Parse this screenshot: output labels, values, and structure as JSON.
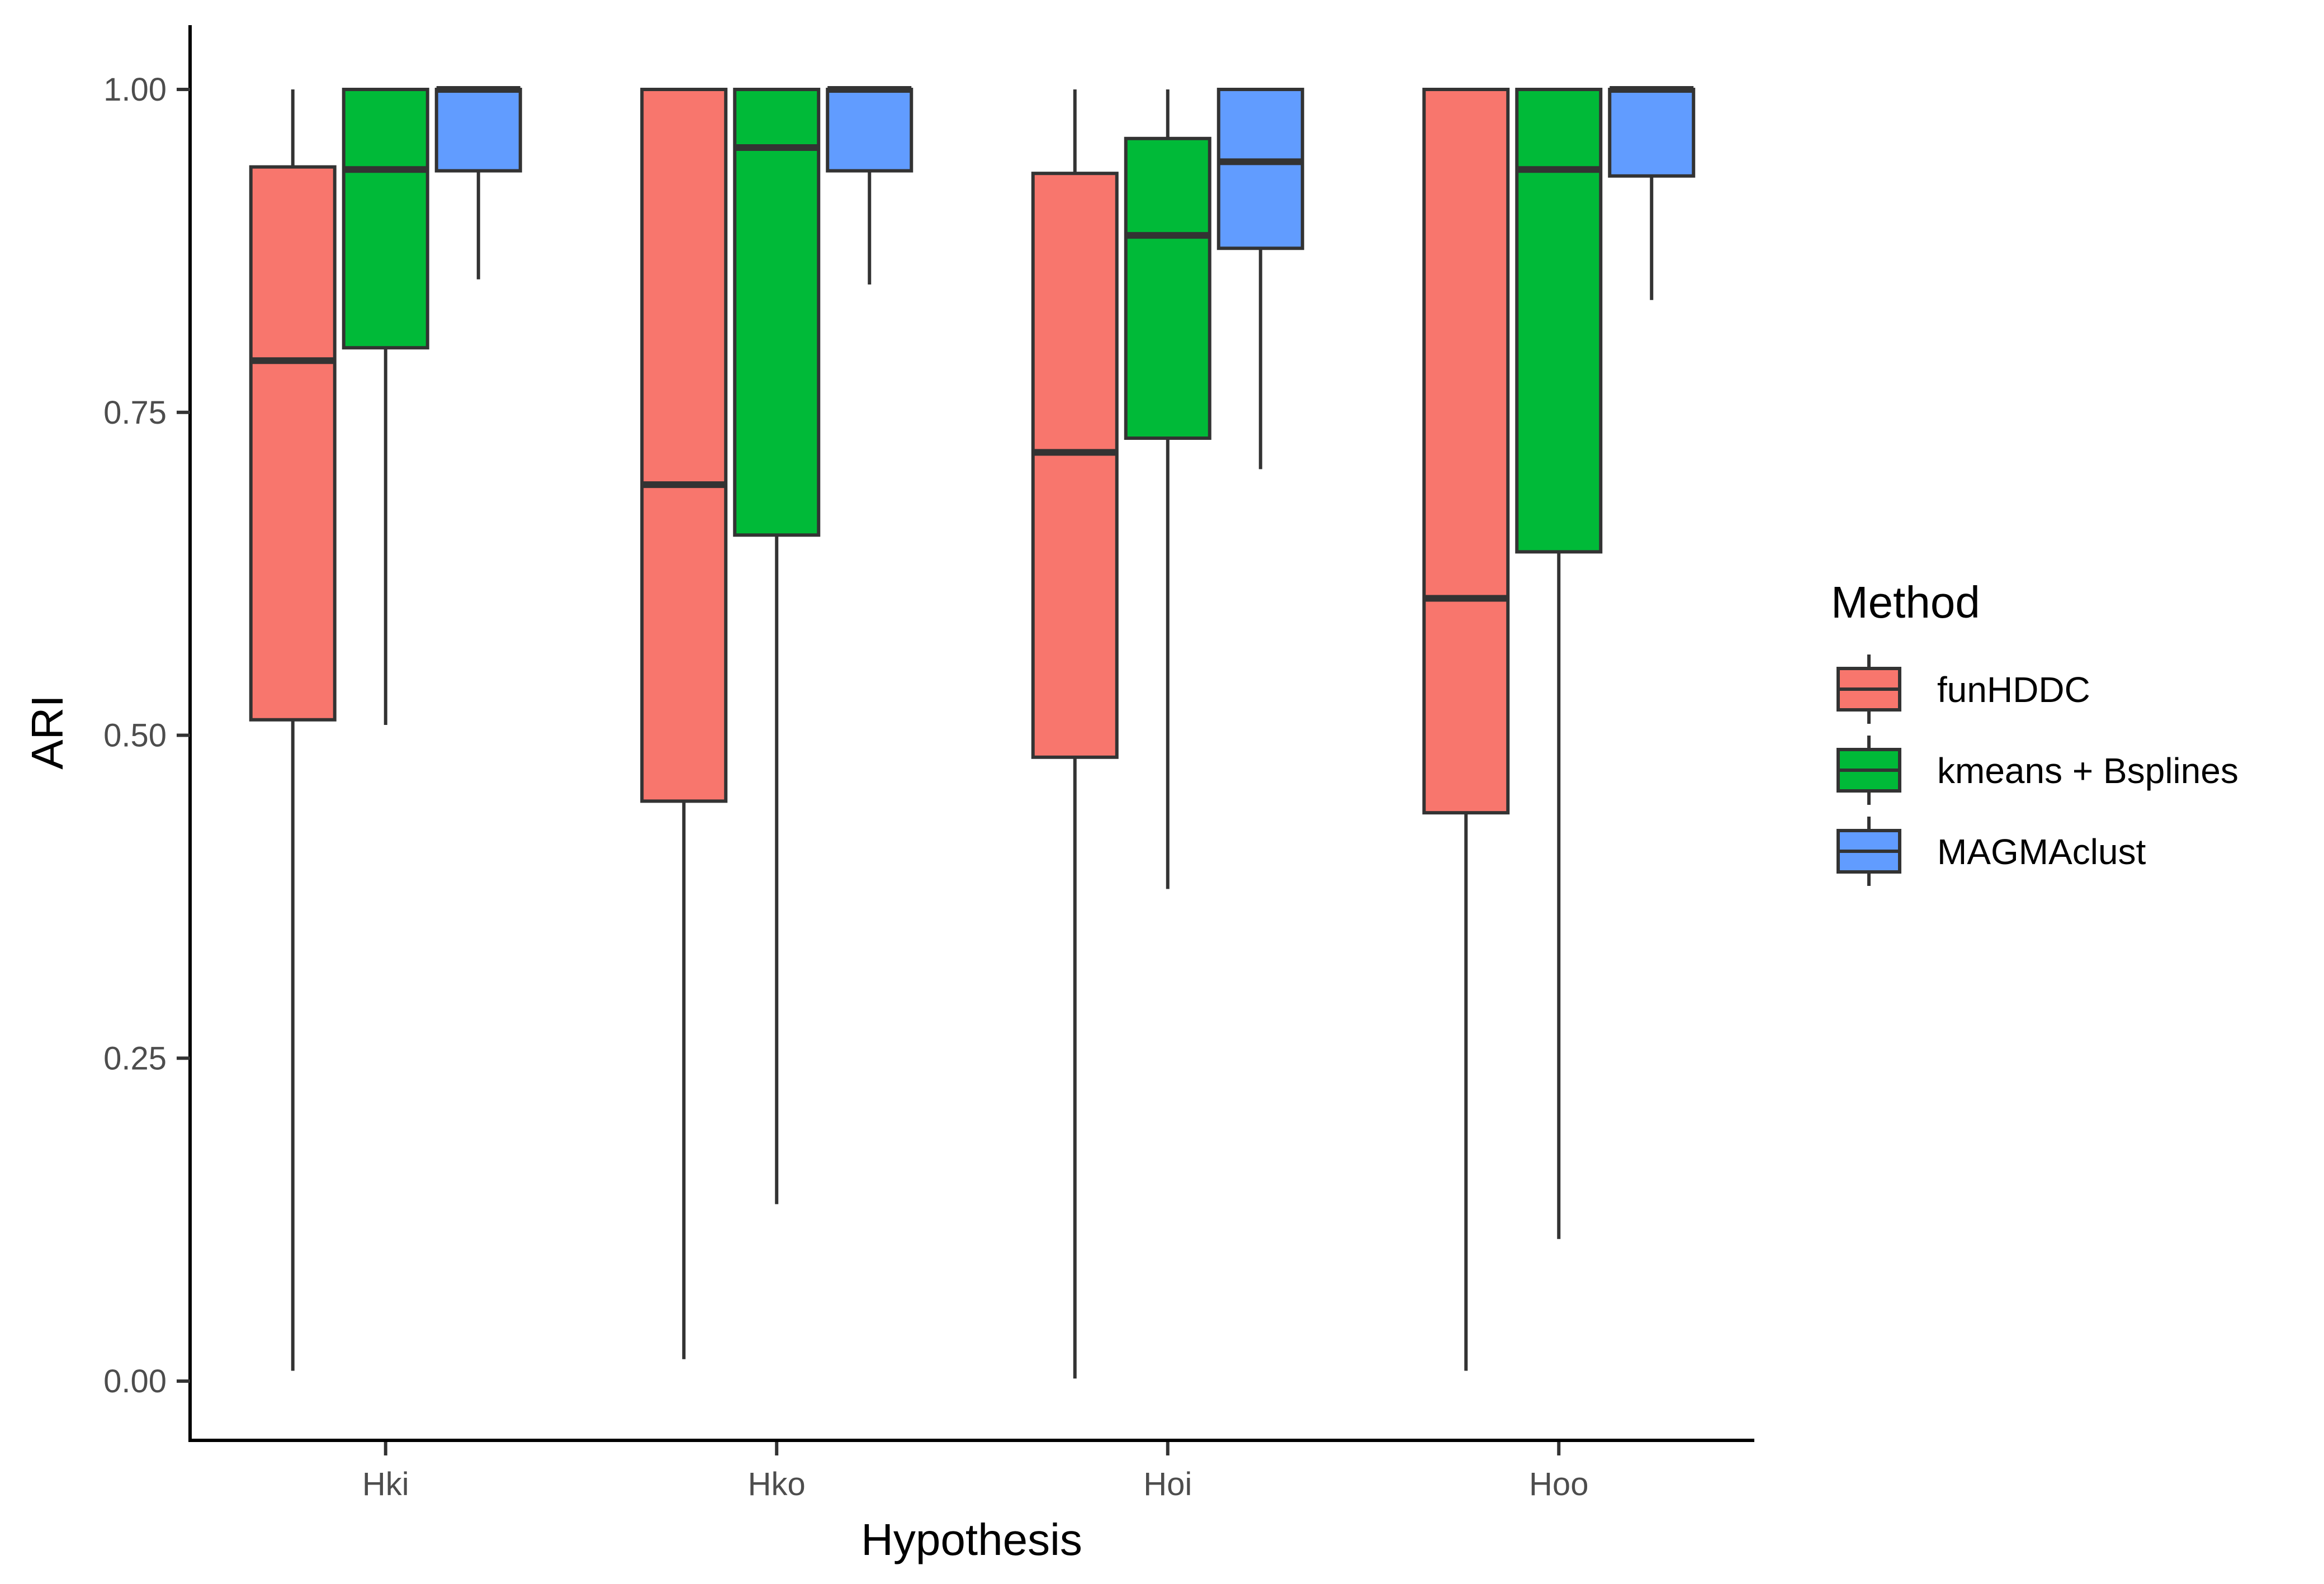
{
  "chart_data": {
    "type": "boxplot",
    "xlabel": "Hypothesis",
    "ylabel": "ARI",
    "ylim": [
      -0.05,
      1.05
    ],
    "yticks": [
      0.0,
      0.25,
      0.5,
      0.75,
      1.0
    ],
    "ytick_labels": [
      "0.00",
      "0.25",
      "0.50",
      "0.75",
      "1.00"
    ],
    "categories": [
      "Hki",
      "Hko",
      "Hoi",
      "Hoo"
    ],
    "legend": {
      "title": "Method",
      "position": "right"
    },
    "series": [
      {
        "name": "funHDDC",
        "color": "#F8766D",
        "boxes": [
          {
            "min": 0.008,
            "q1": 0.512,
            "median": 0.79,
            "q3": 0.94,
            "max": 1.0
          },
          {
            "min": 0.017,
            "q1": 0.449,
            "median": 0.694,
            "q3": 1.0,
            "max": 1.0
          },
          {
            "min": 0.002,
            "q1": 0.483,
            "median": 0.719,
            "q3": 0.935,
            "max": 1.0
          },
          {
            "min": 0.008,
            "q1": 0.44,
            "median": 0.606,
            "q3": 1.0,
            "max": 1.0
          }
        ]
      },
      {
        "name": "kmeans + Bsplines",
        "color": "#00BA38",
        "boxes": [
          {
            "min": 0.508,
            "q1": 0.8,
            "median": 0.938,
            "q3": 1.0,
            "max": 1.0
          },
          {
            "min": 0.137,
            "q1": 0.655,
            "median": 0.955,
            "q3": 1.0,
            "max": 1.0
          },
          {
            "min": 0.381,
            "q1": 0.73,
            "median": 0.887,
            "q3": 0.962,
            "max": 1.0
          },
          {
            "min": 0.11,
            "q1": 0.642,
            "median": 0.938,
            "q3": 1.0,
            "max": 1.0
          }
        ]
      },
      {
        "name": "MAGMAclust",
        "color": "#619CFF",
        "boxes": [
          {
            "min": 0.853,
            "q1": 0.937,
            "median": 1.0,
            "q3": 1.0,
            "max": 1.0
          },
          {
            "min": 0.849,
            "q1": 0.937,
            "median": 1.0,
            "q3": 1.0,
            "max": 1.0
          },
          {
            "min": 0.706,
            "q1": 0.877,
            "median": 0.944,
            "q3": 1.0,
            "max": 1.0
          },
          {
            "min": 0.837,
            "q1": 0.933,
            "median": 1.0,
            "q3": 1.0,
            "max": 1.0
          }
        ]
      }
    ]
  }
}
